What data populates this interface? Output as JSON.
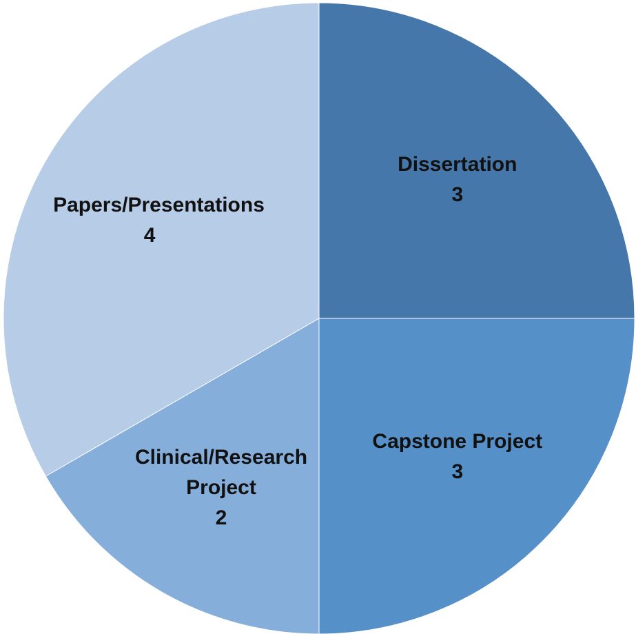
{
  "chart_data": {
    "type": "pie",
    "categories": [
      "Dissertation",
      "Capstone Project",
      "Clinical/Research Project",
      "Papers/Presentations"
    ],
    "values": [
      3,
      3,
      2,
      4
    ],
    "colors": [
      "#4677aa",
      "#5590c8",
      "#86aedb",
      "#b7cce6"
    ]
  }
}
